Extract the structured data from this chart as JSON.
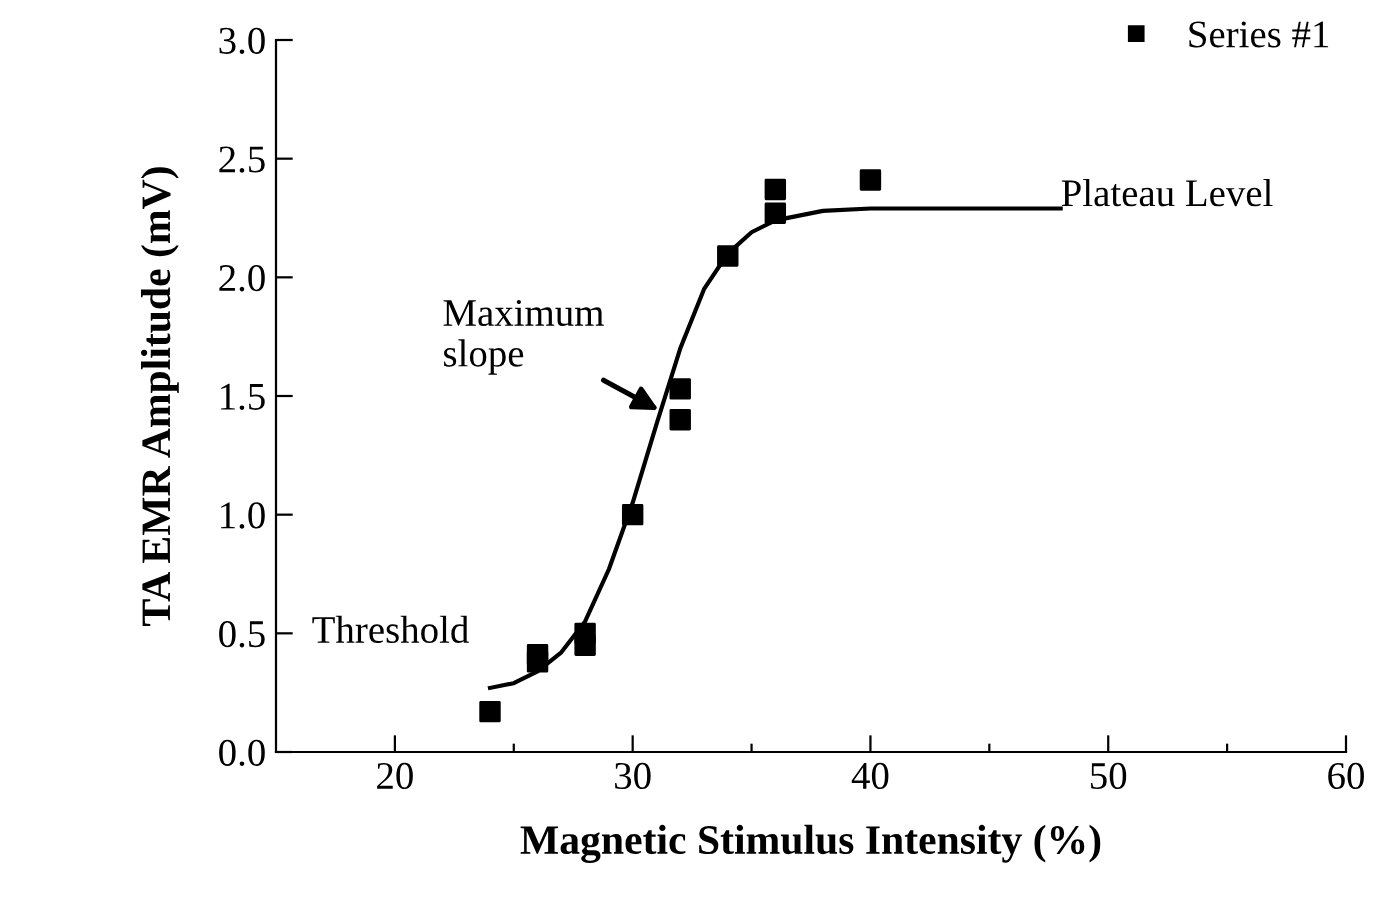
{
  "chart_data": {
    "type": "scatter",
    "xlabel": "Magnetic Stimulus Intensity (%)",
    "ylabel": "TA EMR Amplitude (mV)",
    "series": [
      {
        "name": "Series #1",
        "color": "#000000",
        "marker": "square",
        "x": [
          24,
          26,
          26,
          28,
          28,
          30,
          32,
          32,
          34,
          36,
          36,
          40
        ],
        "values": [
          0.17,
          0.38,
          0.41,
          0.45,
          0.5,
          1.0,
          1.4,
          1.53,
          2.09,
          2.27,
          2.37,
          2.41
        ]
      },
      {
        "type": "line",
        "color": "#000000",
        "line_style": "solid",
        "x": [
          24,
          25,
          26,
          27,
          28,
          29,
          30,
          31,
          32,
          33,
          34,
          35,
          36,
          38,
          40,
          44,
          48
        ],
        "values": [
          0.27,
          0.29,
          0.34,
          0.42,
          0.55,
          0.77,
          1.05,
          1.38,
          1.7,
          1.95,
          2.1,
          2.19,
          2.24,
          2.28,
          2.29,
          2.29,
          2.29
        ]
      }
    ],
    "annotations": [
      {
        "text": "Maximum slope",
        "x": 31.1,
        "y": 1.44
      },
      {
        "text": "Threshold",
        "x": 24,
        "y": 0.27
      },
      {
        "text": "Plateau Level",
        "x": 48,
        "y": 2.29
      }
    ],
    "xlim": [
      15,
      60
    ],
    "xticks": [
      20,
      {
        "value": 25,
        "label": null
      },
      30,
      {
        "value": 35,
        "label": null
      },
      40,
      {
        "value": 45,
        "label": null
      },
      50,
      {
        "value": 55,
        "label": null
      },
      60
    ],
    "ylim": [
      0,
      3
    ],
    "yticks": [
      {
        "value": 0,
        "label": "0.0"
      },
      0.5,
      {
        "value": 1,
        "label": "1.0"
      },
      1.5,
      {
        "value": 2,
        "label": "2.0"
      },
      2.5,
      {
        "value": 3,
        "label": "3.0"
      }
    ],
    "grid": false,
    "legend": "top right"
  }
}
